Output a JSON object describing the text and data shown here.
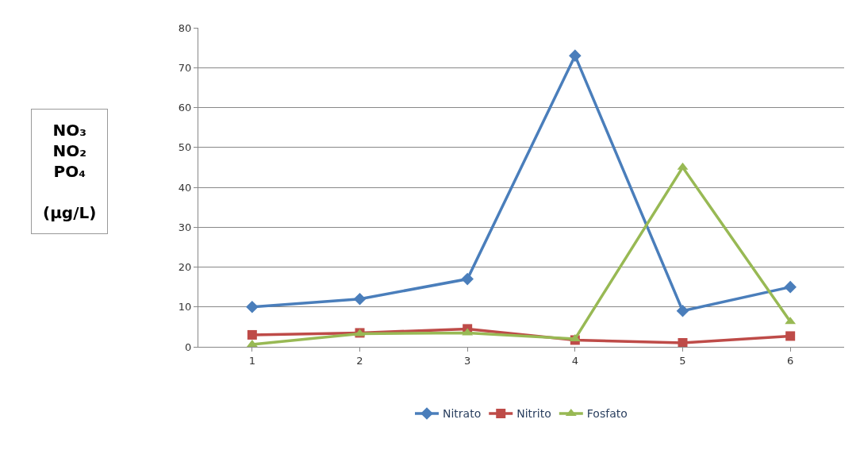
{
  "chart_data": {
    "type": "line",
    "ylabel": "NO₃\nNO₂\nPO₄\n\n(µg/L)",
    "categories": [
      "1",
      "2",
      "3",
      "4",
      "5",
      "6"
    ],
    "series": [
      {
        "name": "Nitrato",
        "color": "#4a7ebb",
        "marker": "diamond",
        "values": [
          10,
          12,
          17,
          73,
          9,
          15
        ]
      },
      {
        "name": "Nitrito",
        "color": "#be4b48",
        "marker": "square",
        "values": [
          3,
          3.5,
          4.5,
          1.7,
          1,
          2.7
        ]
      },
      {
        "name": "Fosfato",
        "color": "#98b954",
        "marker": "triangle",
        "values": [
          0.6,
          3.3,
          3.5,
          2,
          45,
          6.3
        ]
      }
    ],
    "ylim": [
      0,
      80
    ],
    "yticks": [
      0,
      10,
      20,
      30,
      40,
      50,
      60,
      70,
      80
    ],
    "grid": "y",
    "legend": "bottom"
  }
}
